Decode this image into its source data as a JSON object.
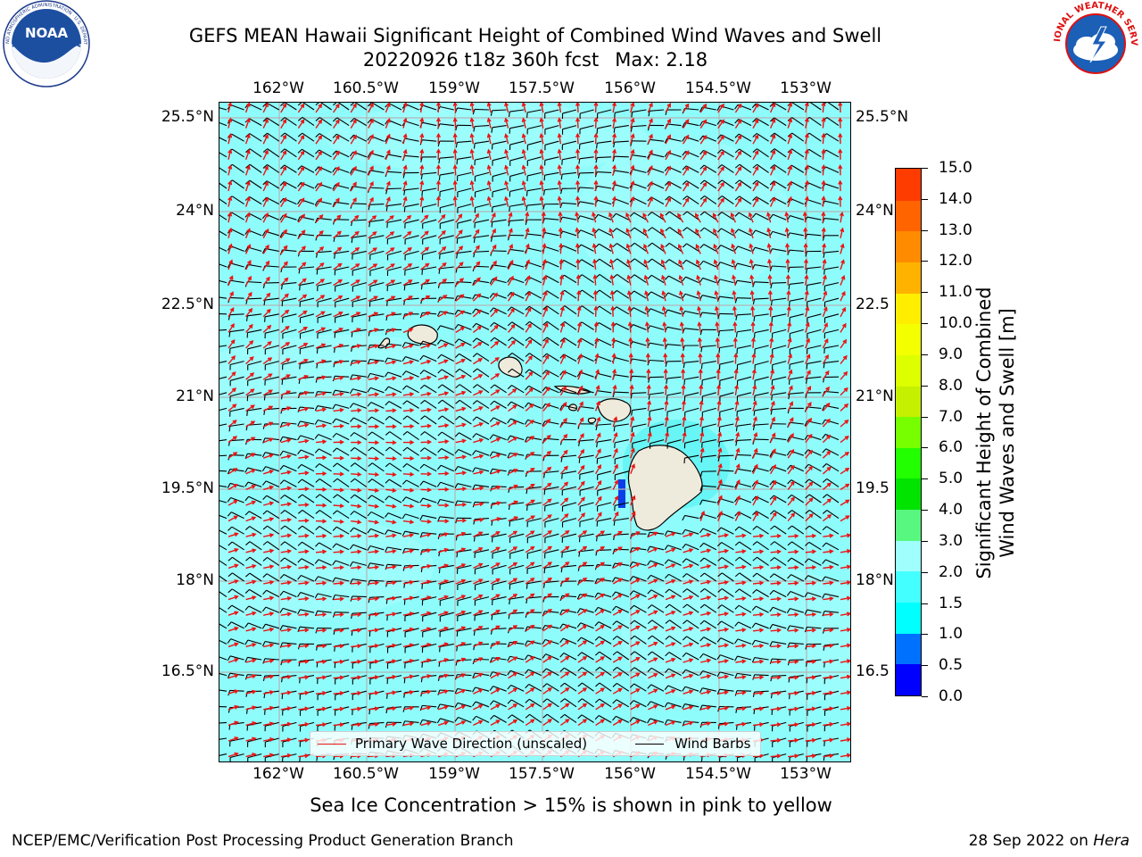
{
  "title": {
    "line1": "GEFS MEAN Hawaii Significant Height of Combined Wind Waves and Swell",
    "line2_date": "20220926 t18z 360h fcst",
    "line2_max": "Max: 2.18"
  },
  "logos": {
    "noaa": {
      "text": "NOAA",
      "ring_text": "NATIONAL OCEANIC AND ATMOSPHERIC ADMINISTRATION · U.S. DEPARTMENT OF COMMERCE"
    },
    "nws": {
      "ring_text": "NATIONAL WEATHER SERVICE"
    }
  },
  "map": {
    "lon_labels": [
      "162°W",
      "160.5°W",
      "159°W",
      "157.5°W",
      "156°W",
      "154.5°W",
      "153°W"
    ],
    "lat_labels": [
      "25.5°N",
      "24°N",
      "22.5°N",
      "21°N",
      "19.5°N",
      "18°N",
      "16.5°N"
    ],
    "lat_labels_right": [
      "25.5°N",
      "24°N",
      "22.5",
      "21°N",
      "19.5",
      "18°N",
      "16.5"
    ],
    "colors": {
      "ocean": "#8ffcfc",
      "ocean_light": "#9ffdfd",
      "land": "#efebdc",
      "wave_arrow": "#ee1111",
      "wind_barb": "#000000",
      "grid": "#b4b4b4"
    }
  },
  "legend": {
    "wave_label": "Primary Wave Direction (unscaled)",
    "barb_label": "Wind Barbs"
  },
  "colorbar": {
    "title_line1": "Significant Height of Combined",
    "title_line2": "Wind Waves and Swell [m]",
    "tick_labels": [
      "15.0",
      "14.0",
      "13.0",
      "12.0",
      "11.0",
      "10.0",
      "9.0",
      "8.0",
      "7.0",
      "6.0",
      "5.0",
      "4.0",
      "3.0",
      "2.0",
      "1.5",
      "1.0",
      "0.5",
      "0.0"
    ],
    "colors": [
      "#0000ff",
      "#0070ff",
      "#00ffff",
      "#44ffff",
      "#9ffffd",
      "#58f77f",
      "#00e400",
      "#22ff00",
      "#77ff00",
      "#c5f000",
      "#ddff00",
      "#f4ff00",
      "#ffee00",
      "#ffb300",
      "#ff8c00",
      "#ff6400",
      "#ff3c00",
      "#ff0000"
    ]
  },
  "footer": {
    "sea_ice_note": "Sea Ice Concentration > 15% is shown in pink to yellow",
    "producer": "NCEP/EMC/Verification Post Processing Product Generation Branch",
    "date": "28 Sep 2022 on",
    "host": "Hera"
  }
}
